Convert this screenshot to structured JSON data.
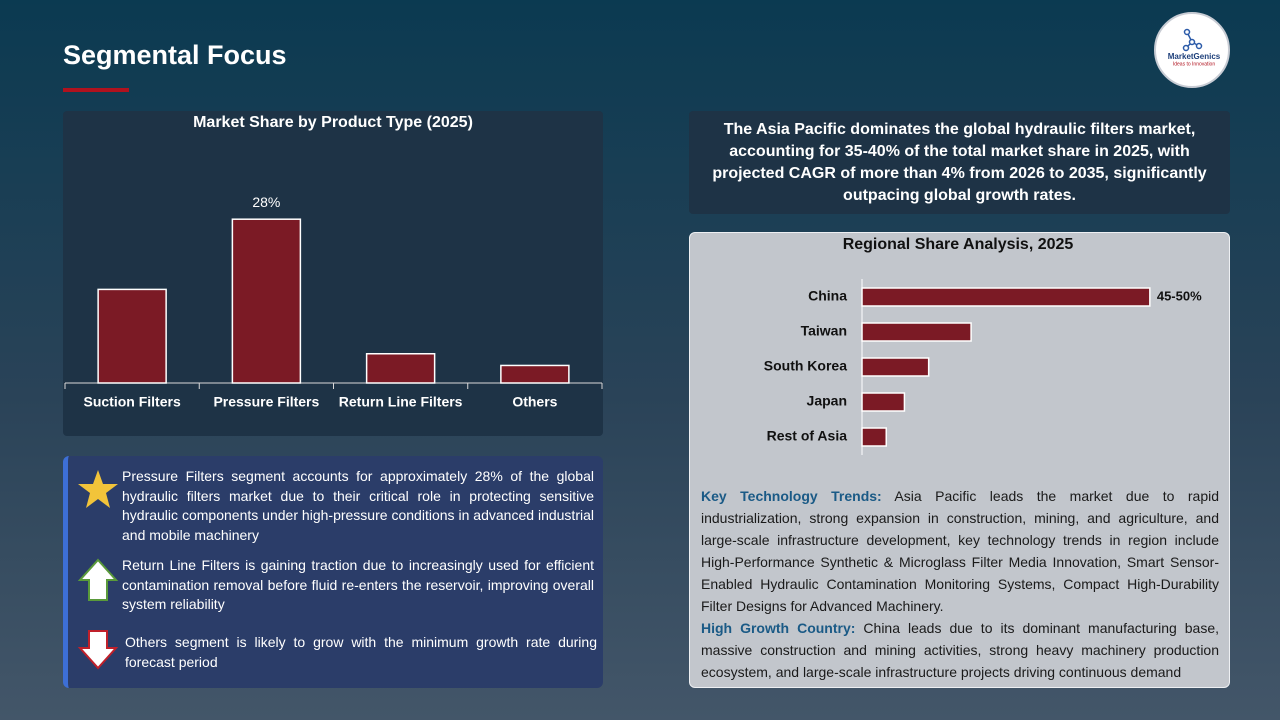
{
  "header": {
    "title": "Segmental Focus"
  },
  "logo": {
    "name": "MarketGenics",
    "tagline": "Ideas to Innovation"
  },
  "chart_data": [
    {
      "type": "bar",
      "title": "Market Share by Product Type (2025)",
      "categories": [
        "Suction Filters",
        "Pressure Filters",
        "Return Line Filters",
        "Others"
      ],
      "values": [
        16,
        28,
        5,
        3
      ],
      "value_labels": [
        null,
        "28%",
        null,
        null
      ],
      "color": "#7b1a25",
      "ylim": [
        0,
        40
      ]
    },
    {
      "type": "hbar",
      "title": "Regional Share Analysis, 2025",
      "categories": [
        "China",
        "Taiwan",
        "South Korea",
        "Japan",
        "Rest of Asia"
      ],
      "values": [
        47.5,
        18,
        11,
        7,
        4
      ],
      "value_labels": [
        "45-50%",
        null,
        null,
        null,
        null
      ],
      "color": "#7b1a25",
      "xlim": [
        0,
        50
      ]
    }
  ],
  "highlight": "The Asia Pacific dominates the global hydraulic filters market, accounting for 35-40% of the total market share in 2025, with projected CAGR of more than 4% from 2026 to 2035, significantly outpacing global growth rates.",
  "insights": [
    "Pressure Filters segment accounts for approximately 28% of the global hydraulic filters market due to their critical role in protecting sensitive hydraulic components under high-pressure conditions in advanced industrial and mobile machinery",
    "Return Line Filters is gaining traction due to increasingly used for efficient contamination removal before fluid re-enters the reservoir, improving overall system reliability",
    "Others segment is likely to grow with the minimum growth rate during forecast period"
  ],
  "notes": [
    {
      "label": "Key Technology Trends:",
      "text": "Asia Pacific leads the market due to rapid industrialization, strong expansion in construction, mining, and agriculture, and large-scale infrastructure development, key technology trends in region include High-Performance Synthetic & Microglass Filter Media Innovation, Smart Sensor-Enabled Hydraulic Contamination Monitoring Systems, Compact High-Durability Filter Designs for Advanced Machinery."
    },
    {
      "label": "High Growth Country:",
      "text": "China leads due to its dominant manufacturing base, massive construction and mining activities, strong heavy machinery production ecosystem, and large-scale infrastructure projects driving continuous demand"
    }
  ]
}
